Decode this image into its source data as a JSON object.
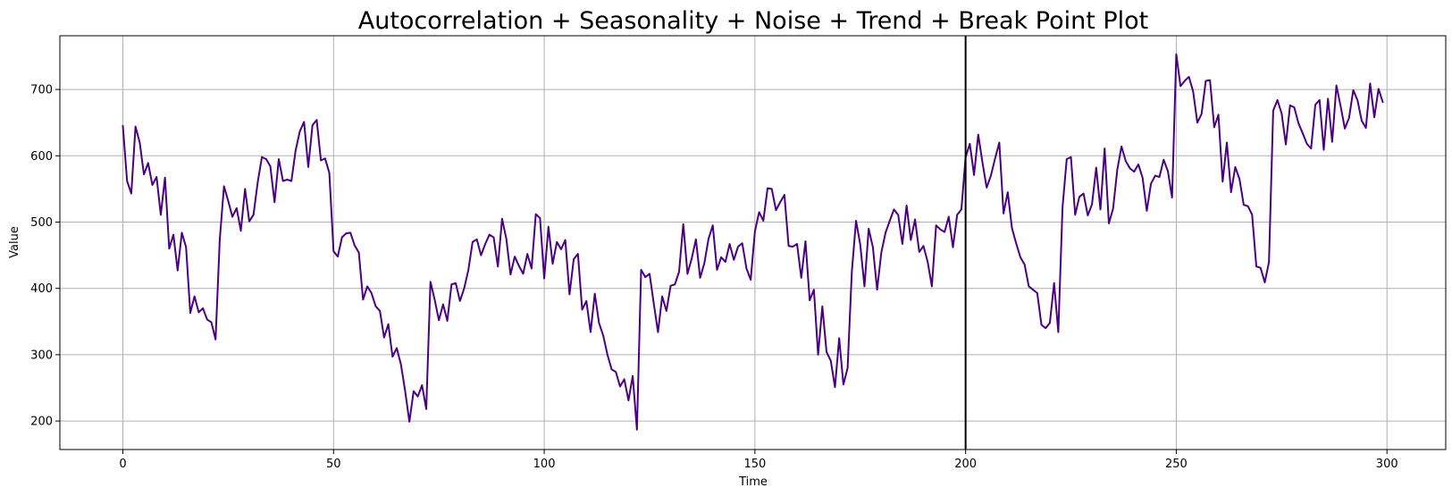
{
  "chart_data": {
    "type": "line",
    "title": "Autocorrelation + Seasonality + Noise + Trend + Break Point Plot",
    "xlabel": "Time",
    "ylabel": "Value",
    "xlim": [
      -14.95,
      313.95
    ],
    "ylim": [
      157,
      781
    ],
    "xticks": [
      0,
      50,
      100,
      150,
      200,
      250,
      300
    ],
    "yticks": [
      200,
      300,
      400,
      500,
      600,
      700
    ],
    "grid": true,
    "colors": {
      "series": "#4b0082",
      "break_point": "#000000"
    },
    "break_point": 200,
    "series": [
      {
        "x_start": 0,
        "x_step": 1,
        "values": [
          645,
          562,
          543,
          644,
          620,
          572,
          589,
          556,
          568,
          511,
          567,
          460,
          481,
          427,
          484,
          462,
          363,
          388,
          364,
          370,
          353,
          349,
          323,
          474,
          554,
          532,
          508,
          521,
          487,
          550,
          501,
          511,
          560,
          598,
          595,
          584,
          530,
          595,
          562,
          564,
          562,
          608,
          637,
          651,
          583,
          646,
          654,
          593,
          596,
          574,
          456,
          448,
          477,
          483,
          484,
          465,
          454,
          383,
          403,
          393,
          373,
          366,
          326,
          346,
          297,
          310,
          285,
          245,
          199,
          245,
          237,
          254,
          218,
          410,
          383,
          352,
          376,
          351,
          406,
          408,
          381,
          400,
          428,
          470,
          474,
          450,
          467,
          481,
          477,
          433,
          505,
          475,
          421,
          448,
          434,
          422,
          452,
          430,
          512,
          506,
          415,
          493,
          437,
          470,
          459,
          473,
          391,
          444,
          452,
          368,
          381,
          334,
          392,
          348,
          329,
          300,
          278,
          274,
          252,
          263,
          231,
          268,
          187,
          428,
          417,
          422,
          377,
          334,
          388,
          366,
          404,
          406,
          425,
          497,
          422,
          445,
          474,
          416,
          438,
          475,
          495,
          428,
          447,
          440,
          467,
          443,
          463,
          468,
          430,
          413,
          486,
          515,
          502,
          551,
          550,
          518,
          530,
          541,
          464,
          463,
          467,
          416,
          471,
          382,
          398,
          300,
          373,
          304,
          291,
          251,
          325,
          255,
          280,
          425,
          502,
          466,
          403,
          490,
          462,
          398,
          454,
          484,
          502,
          519,
          511,
          467,
          525,
          473,
          504,
          455,
          464,
          440,
          403,
          495,
          489,
          485,
          508,
          462,
          511,
          519,
          598,
          618,
          571,
          632,
          590,
          552,
          570,
          596,
          620,
          513,
          545,
          491,
          468,
          447,
          436,
          403,
          398,
          393,
          345,
          340,
          348,
          408,
          334,
          522,
          595,
          598,
          511,
          538,
          543,
          510,
          527,
          582,
          519,
          611,
          498,
          520,
          579,
          614,
          592,
          581,
          576,
          587,
          567,
          517,
          558,
          570,
          568,
          594,
          577,
          537,
          753,
          705,
          713,
          719,
          697,
          650,
          663,
          713,
          714,
          643,
          662,
          561,
          620,
          545,
          583,
          565,
          526,
          524,
          511,
          433,
          431,
          409,
          440,
          668,
          684,
          664,
          617,
          676,
          673,
          649,
          634,
          618,
          611,
          677,
          684,
          609,
          686,
          621,
          706,
          675,
          641,
          657,
          699,
          684,
          653,
          642,
          709,
          658,
          701,
          681
        ]
      }
    ]
  }
}
